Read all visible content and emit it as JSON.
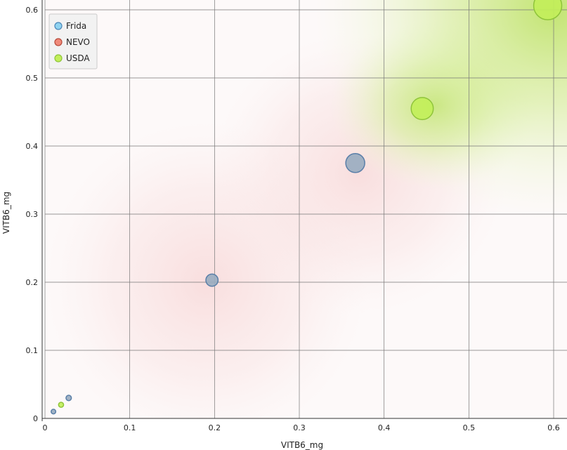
{
  "chart_data": {
    "type": "scatter",
    "title": "",
    "xlabel": "VITB6_mg",
    "ylabel": "VITB6_mg",
    "xlim": [
      0,
      0.6
    ],
    "ylim": [
      0,
      0.6
    ],
    "xticks": [
      0,
      0.1,
      0.2,
      0.3,
      0.4,
      0.5,
      0.6
    ],
    "yticks": [
      0,
      0.1,
      0.2,
      0.3,
      0.4,
      0.5,
      0.6
    ],
    "xtick_labels": [
      "0",
      "0.1",
      "0.2",
      "0.3",
      "0.4",
      "0.5",
      "0.6"
    ],
    "ytick_labels": [
      "0",
      "0.1",
      "0.2",
      "0.3",
      "0.4",
      "0.5",
      "0.6"
    ],
    "grid": true,
    "legend_position": "top-left",
    "series": [
      {
        "name": "Frida",
        "color": "#8fd3f0",
        "stroke": "#4a86b8",
        "points": [
          {
            "x": 0.01,
            "y": 0.01
          },
          {
            "x": 0.028,
            "y": 0.03
          },
          {
            "x": 0.197,
            "y": 0.203
          },
          {
            "x": 0.366,
            "y": 0.375
          }
        ]
      },
      {
        "name": "NEVO",
        "color": "#f08a7a",
        "stroke": "#b84a3a",
        "points": []
      },
      {
        "name": "USDA",
        "color": "#c2ef5a",
        "stroke": "#8fc43a",
        "points": [
          {
            "x": 0.019,
            "y": 0.02
          },
          {
            "x": 0.445,
            "y": 0.455
          },
          {
            "x": 0.593,
            "y": 0.606
          }
        ]
      }
    ],
    "overlapping_point_color": "#9aacc0",
    "overlapping_point_stroke": "#5a7fa8"
  }
}
